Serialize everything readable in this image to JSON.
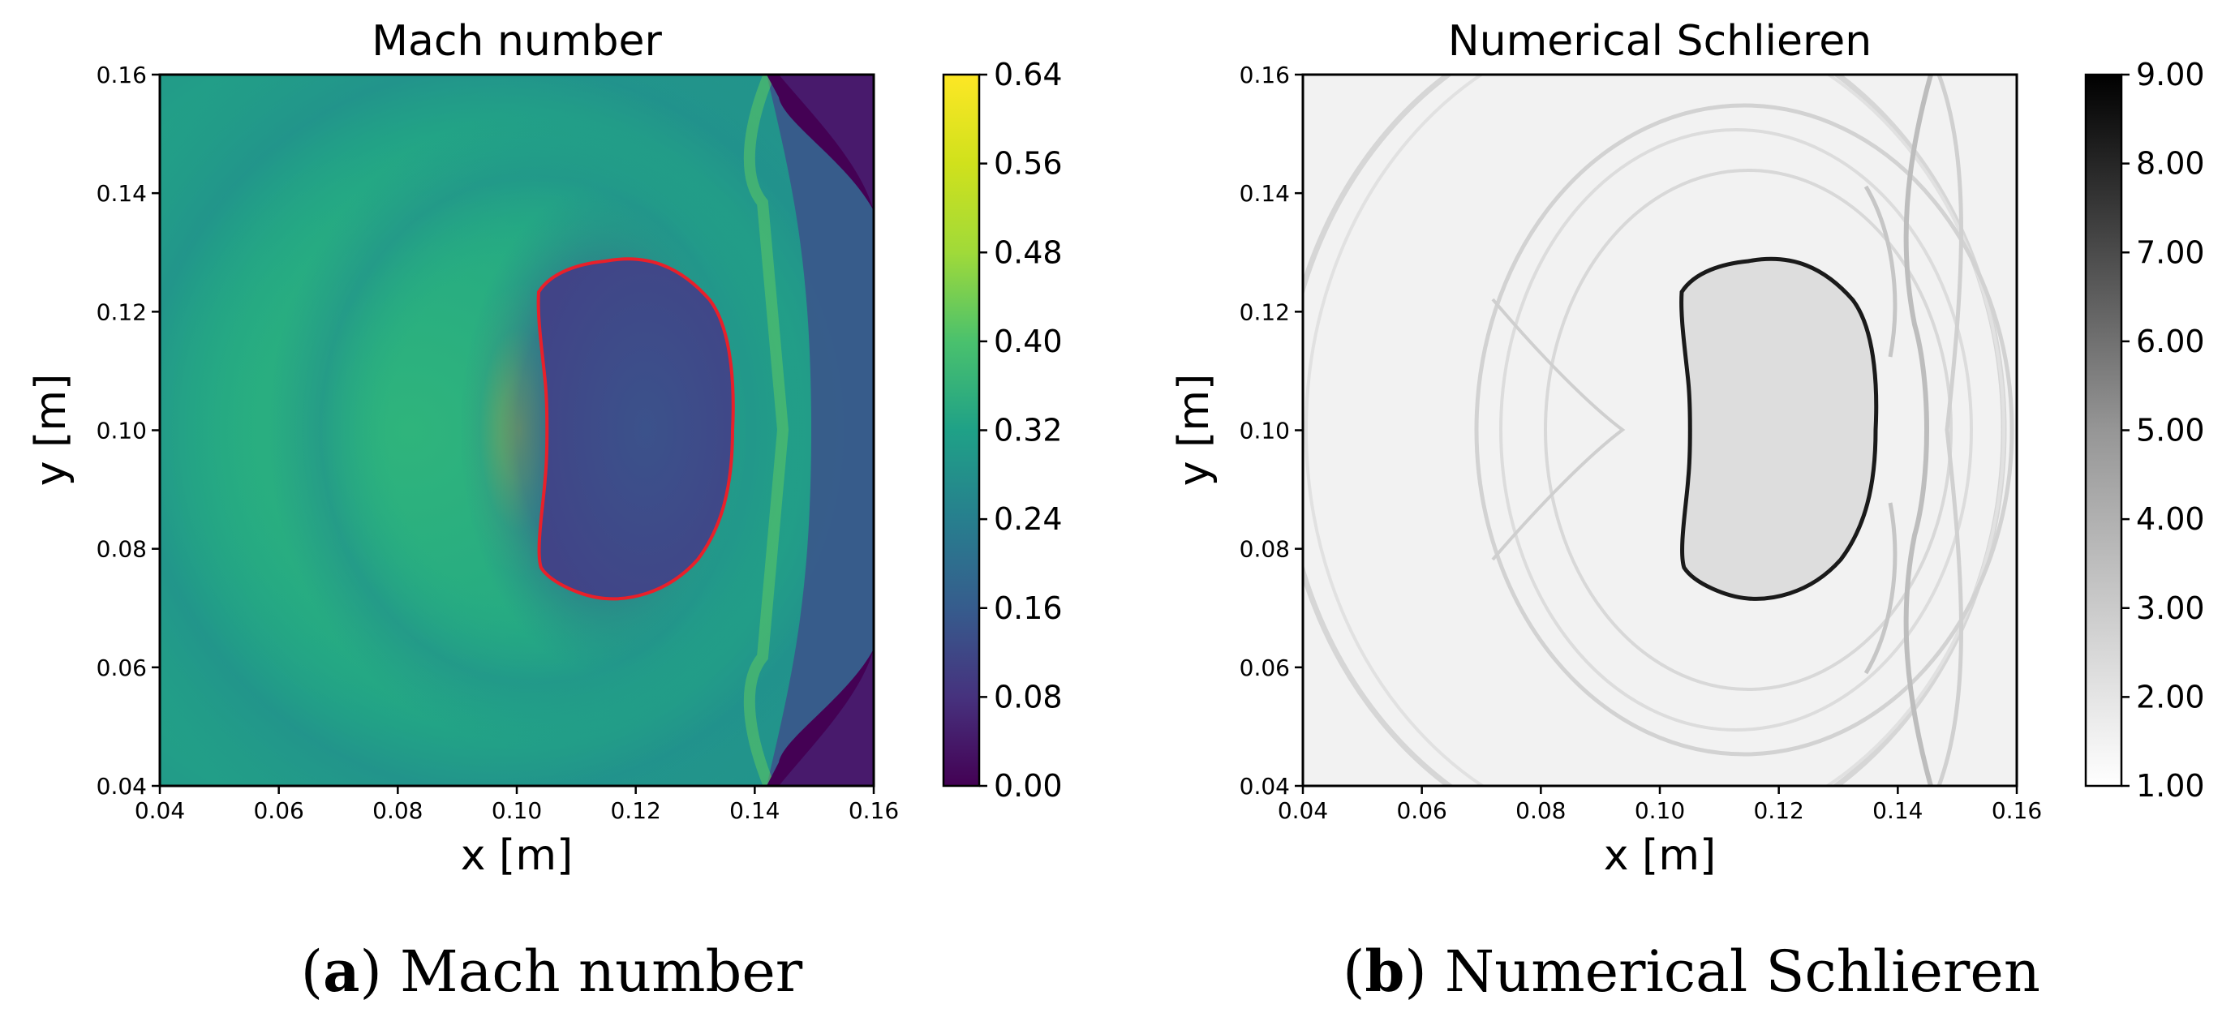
{
  "colors": {
    "viridis_low": "#440154",
    "viridis_mid": "#21918c",
    "viridis_high": "#fde725",
    "interface_left": "#e8202a",
    "schlieren_low": "#ffffff",
    "schlieren_high": "#000000"
  },
  "chart_data": [
    {
      "type": "heatmap",
      "title": "Mach number",
      "xlabel": "x [m]",
      "ylabel": "y [m]",
      "xlim": [
        0.04,
        0.16
      ],
      "ylim": [
        0.04,
        0.16
      ],
      "xticks": [
        "0.04",
        "0.06",
        "0.08",
        "0.10",
        "0.12",
        "0.14",
        "0.16"
      ],
      "yticks": [
        "0.04",
        "0.06",
        "0.08",
        "0.10",
        "0.12",
        "0.14",
        "0.16"
      ],
      "colormap": "viridis",
      "colorbar_range": [
        0.0,
        0.64
      ],
      "colorbar_ticks": [
        "0.00",
        "0.08",
        "0.16",
        "0.24",
        "0.32",
        "0.40",
        "0.48",
        "0.56",
        "0.64"
      ],
      "interface_color": "red",
      "bubble_extent": {
        "x": [
          0.104,
          0.136
        ],
        "y": [
          0.071,
          0.129
        ]
      },
      "caption_label": "a",
      "caption_text": "Mach number"
    },
    {
      "type": "heatmap",
      "title": "Numerical Schlieren",
      "xlabel": "x [m]",
      "ylabel": "y [m]",
      "xlim": [
        0.04,
        0.16
      ],
      "ylim": [
        0.04,
        0.16
      ],
      "xticks": [
        "0.04",
        "0.06",
        "0.08",
        "0.10",
        "0.12",
        "0.14",
        "0.16"
      ],
      "yticks": [
        "0.04",
        "0.06",
        "0.08",
        "0.10",
        "0.12",
        "0.14",
        "0.16"
      ],
      "colormap": "greys",
      "colorbar_range": [
        1.0,
        9.0
      ],
      "colorbar_ticks": [
        "1.00",
        "2.00",
        "3.00",
        "4.00",
        "5.00",
        "6.00",
        "7.00",
        "8.00",
        "9.00"
      ],
      "interface_color": "black",
      "bubble_extent": {
        "x": [
          0.104,
          0.136
        ],
        "y": [
          0.071,
          0.129
        ]
      },
      "caption_label": "b",
      "caption_text": "Numerical Schlieren"
    }
  ]
}
